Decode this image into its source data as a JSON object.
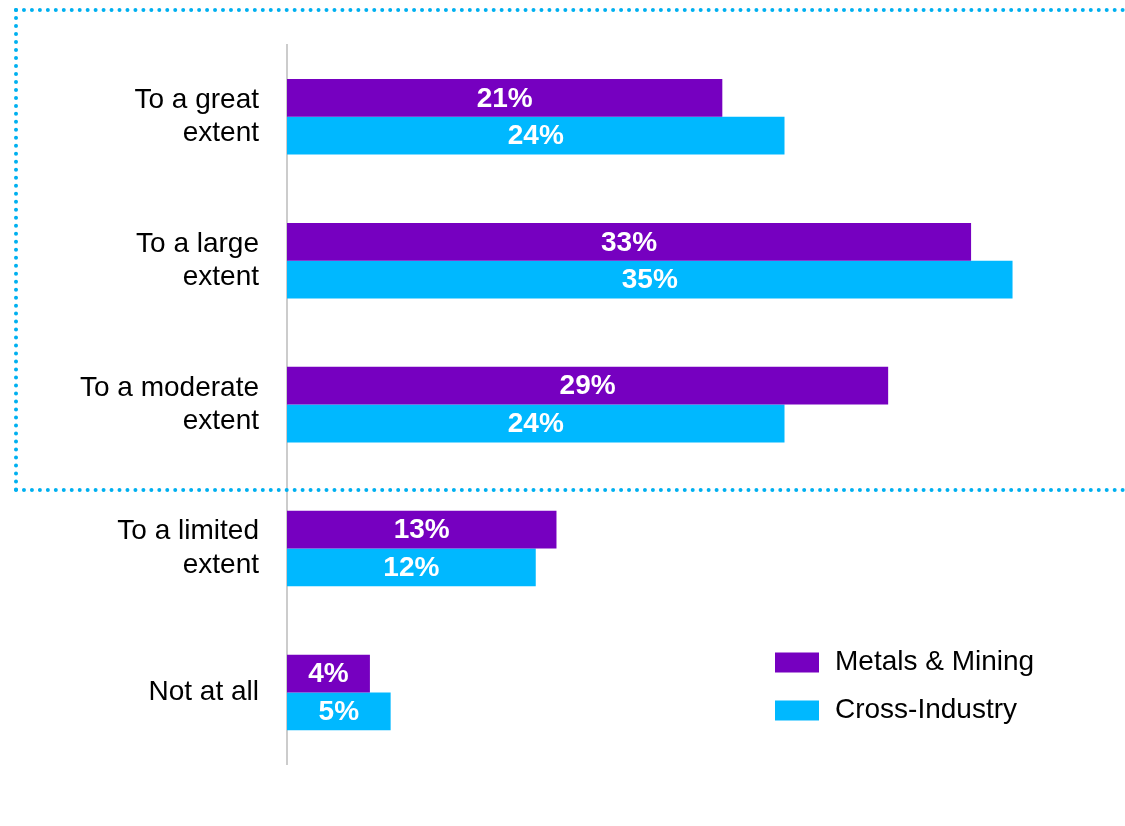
{
  "chart_data": {
    "type": "bar",
    "orientation": "horizontal",
    "categories": [
      "To a great extent",
      "To a large extent",
      "To a moderate extent",
      "To a limited extent",
      "Not at all"
    ],
    "series": [
      {
        "name": "Metals & Mining",
        "color": "#7600c0",
        "values": [
          21,
          33,
          29,
          13,
          4
        ],
        "value_labels": [
          "21%",
          "33%",
          "29%",
          "13%",
          "4%"
        ]
      },
      {
        "name": "Cross-Industry",
        "color": "#00b8ff",
        "values": [
          24,
          35,
          24,
          12,
          5
        ],
        "value_labels": [
          "24%",
          "35%",
          "24%",
          "12%",
          "5%"
        ]
      }
    ],
    "legend": "bottom right"
  }
}
